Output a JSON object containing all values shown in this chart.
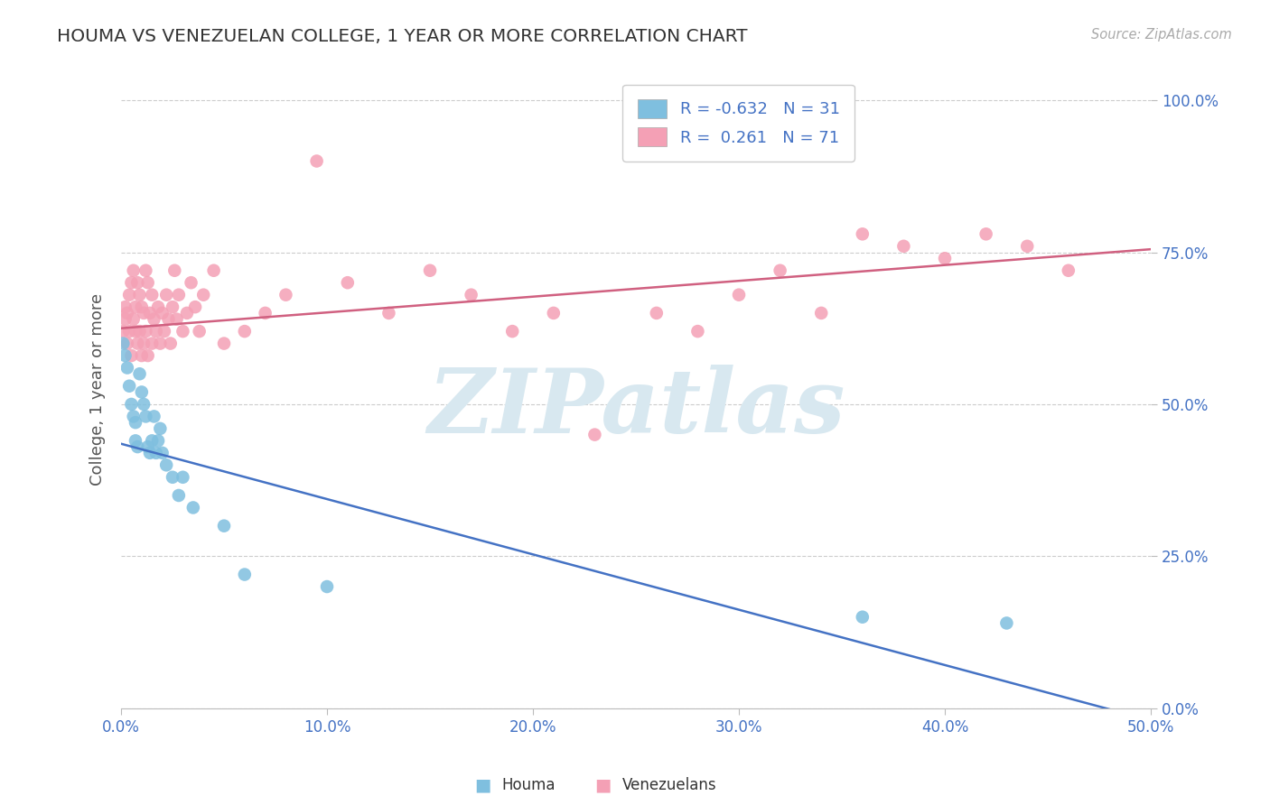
{
  "title": "HOUMA VS VENEZUELAN COLLEGE, 1 YEAR OR MORE CORRELATION CHART",
  "source_text": "Source: ZipAtlas.com",
  "xlim": [
    0.0,
    0.5
  ],
  "ylim": [
    0.0,
    1.05
  ],
  "houma_color": "#7fbfdf",
  "venezuelan_color": "#f4a0b5",
  "houma_line_color": "#4472c4",
  "venezuelan_line_color": "#d06080",
  "legend_R_houma": "-0.632",
  "legend_N_houma": "31",
  "legend_R_venezuelan": "0.261",
  "legend_N_venezuelan": "71",
  "watermark_text": "ZIPatlas",
  "watermark_color": "#d8e8f0",
  "background_color": "#ffffff",
  "grid_color": "#cccccc",
  "houma_x": [
    0.001,
    0.002,
    0.003,
    0.004,
    0.005,
    0.006,
    0.007,
    0.007,
    0.008,
    0.009,
    0.01,
    0.011,
    0.012,
    0.013,
    0.014,
    0.015,
    0.016,
    0.017,
    0.018,
    0.019,
    0.02,
    0.022,
    0.025,
    0.028,
    0.03,
    0.035,
    0.05,
    0.06,
    0.1,
    0.36,
    0.43
  ],
  "houma_y": [
    0.6,
    0.58,
    0.56,
    0.53,
    0.5,
    0.48,
    0.47,
    0.44,
    0.43,
    0.55,
    0.52,
    0.5,
    0.48,
    0.43,
    0.42,
    0.44,
    0.48,
    0.42,
    0.44,
    0.46,
    0.42,
    0.4,
    0.38,
    0.35,
    0.38,
    0.33,
    0.3,
    0.22,
    0.2,
    0.15,
    0.14
  ],
  "venezuelan_x": [
    0.001,
    0.002,
    0.002,
    0.003,
    0.003,
    0.004,
    0.004,
    0.005,
    0.005,
    0.006,
    0.006,
    0.007,
    0.007,
    0.008,
    0.008,
    0.009,
    0.009,
    0.01,
    0.01,
    0.011,
    0.011,
    0.012,
    0.012,
    0.013,
    0.013,
    0.014,
    0.015,
    0.015,
    0.016,
    0.017,
    0.018,
    0.019,
    0.02,
    0.021,
    0.022,
    0.023,
    0.024,
    0.025,
    0.026,
    0.027,
    0.028,
    0.03,
    0.032,
    0.034,
    0.036,
    0.038,
    0.04,
    0.045,
    0.05,
    0.06,
    0.07,
    0.08,
    0.095,
    0.11,
    0.13,
    0.15,
    0.17,
    0.19,
    0.21,
    0.23,
    0.26,
    0.28,
    0.3,
    0.32,
    0.34,
    0.36,
    0.38,
    0.4,
    0.42,
    0.44,
    0.46
  ],
  "venezuelan_y": [
    0.62,
    0.64,
    0.66,
    0.6,
    0.65,
    0.62,
    0.68,
    0.58,
    0.7,
    0.64,
    0.72,
    0.62,
    0.66,
    0.6,
    0.7,
    0.62,
    0.68,
    0.58,
    0.66,
    0.6,
    0.65,
    0.62,
    0.72,
    0.58,
    0.7,
    0.65,
    0.6,
    0.68,
    0.64,
    0.62,
    0.66,
    0.6,
    0.65,
    0.62,
    0.68,
    0.64,
    0.6,
    0.66,
    0.72,
    0.64,
    0.68,
    0.62,
    0.65,
    0.7,
    0.66,
    0.62,
    0.68,
    0.72,
    0.6,
    0.62,
    0.65,
    0.68,
    0.9,
    0.7,
    0.65,
    0.72,
    0.68,
    0.62,
    0.65,
    0.45,
    0.65,
    0.62,
    0.68,
    0.72,
    0.65,
    0.78,
    0.76,
    0.74,
    0.78,
    0.76,
    0.72
  ],
  "houma_line_x0": 0.0,
  "houma_line_x1": 0.5,
  "houma_line_y0": 0.435,
  "houma_line_y1": -0.02,
  "venezuelan_line_x0": 0.0,
  "venezuelan_line_x1": 0.5,
  "venezuelan_line_y0": 0.625,
  "venezuelan_line_y1": 0.755
}
